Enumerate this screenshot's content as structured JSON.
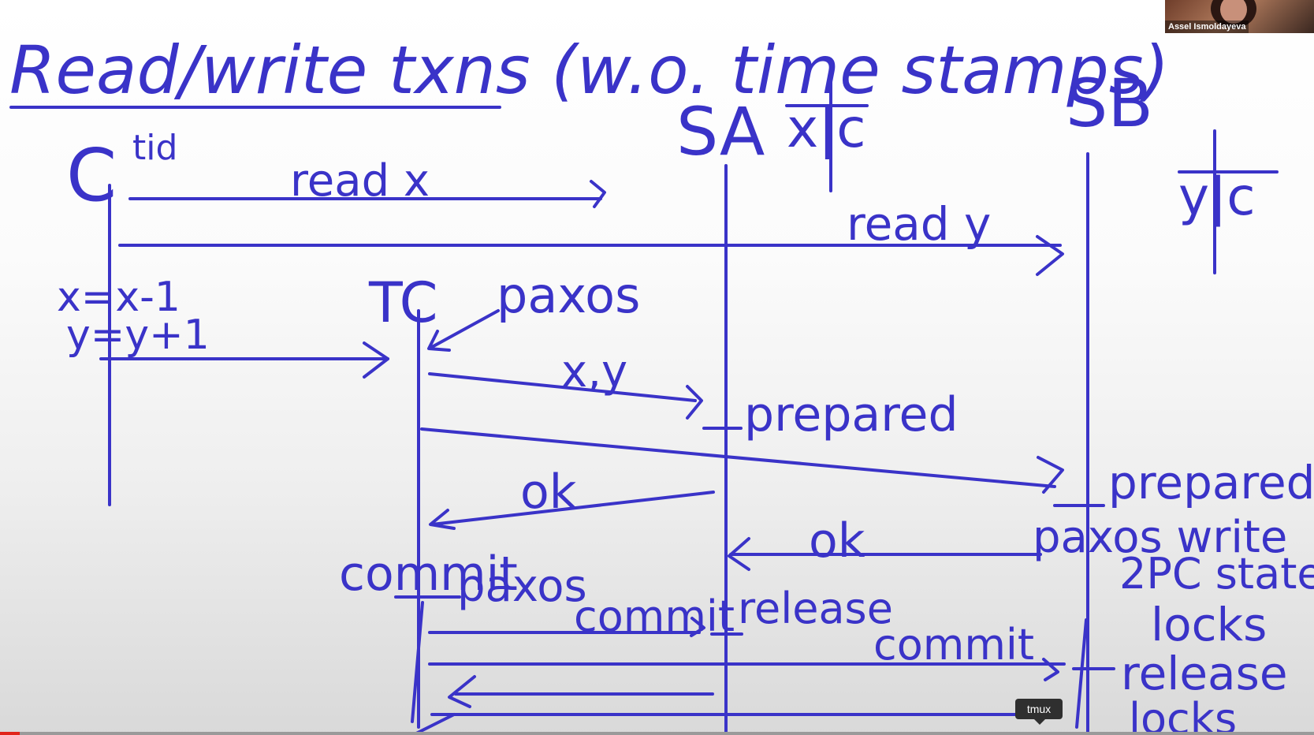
{
  "title": "Read/write txns (w.o. time stamps)",
  "participants": {
    "client": "C",
    "client_note": "tid",
    "coordinator": "TC",
    "server_a": "SA",
    "server_b": "SB",
    "server_a_state": "x|c",
    "server_b_state": "y|c"
  },
  "client_ops": [
    "x=x-1",
    "y=y+1"
  ],
  "messages": {
    "read_x": "read x",
    "read_y": "read y",
    "paxos": "paxos",
    "xy": "x,y",
    "prepared_a": "prepared",
    "prepared_b": "prepared",
    "ok_a": "ok",
    "ok_b": "ok",
    "commit": "commit",
    "commit_paxos": "paxos",
    "commit_a": "commit",
    "release": "release",
    "commit_b": "commit"
  },
  "sb_notes": [
    "paxos write",
    "2PC state",
    "locks",
    "release",
    "locks"
  ],
  "webcam": {
    "name": "Assel Ismoldayeva"
  },
  "tooltip": "tmux",
  "video_progress": 0.015,
  "colors": {
    "ink": "#3a33c8",
    "progress": "#e1251b"
  }
}
